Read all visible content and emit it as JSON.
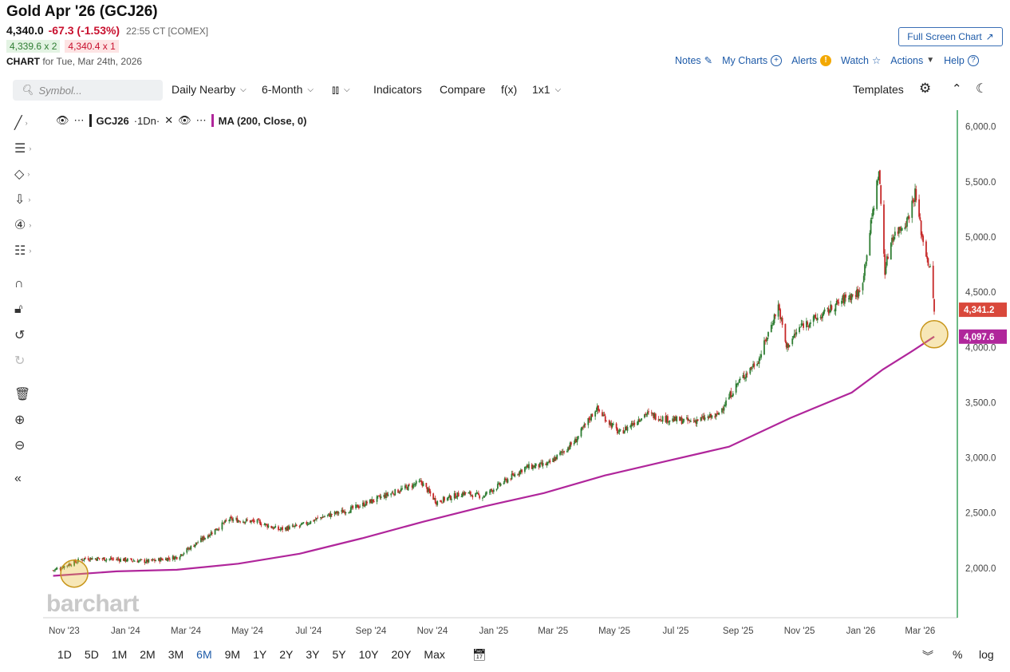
{
  "header": {
    "title": "Gold Apr '26 (GCJ26)",
    "last": "4,340.0",
    "change": "-67.3 (-1.53%)",
    "time": "22:55 CT [COMEX]",
    "bid": "4,339.6 x 2",
    "ask": "4,340.4 x 1",
    "chart_label": "CHART",
    "chart_date": "for Tue, Mar 24th, 2026",
    "fullscreen": "Full Screen Chart"
  },
  "topnav": {
    "notes": "Notes",
    "mycharts": "My Charts",
    "alerts": "Alerts",
    "watch": "Watch",
    "actions": "Actions",
    "help": "Help"
  },
  "toolbar": {
    "search_placeholder": "Symbol...",
    "interval": "Daily Nearby",
    "period": "6-Month",
    "indicators": "Indicators",
    "compare": "Compare",
    "fx": "f(x)",
    "layout": "1x1",
    "templates": "Templates"
  },
  "legend": {
    "symbol": "GCJ26",
    "interval": "·1Dn·",
    "ma": "MA (200, Close, 0)"
  },
  "watermark": "barchart",
  "ranges": [
    "1D",
    "5D",
    "1M",
    "2M",
    "3M",
    "6M",
    "9M",
    "1Y",
    "2Y",
    "3Y",
    "5Y",
    "10Y",
    "20Y",
    "Max"
  ],
  "active_range": "6M",
  "bottom_right": {
    "percent": "%",
    "log": "log"
  },
  "colors": {
    "up": "#2e7d32",
    "down": "#c62828",
    "ma": "#b0269b",
    "last_badge": "#d9483b",
    "axis": "#3aa35b",
    "highlight": "#e8b930"
  },
  "chart_data": {
    "type": "line",
    "x_labels": [
      "Nov '23",
      "Jan '24",
      "Mar '24",
      "May '24",
      "Jul '24",
      "Sep '24",
      "Nov '24",
      "Jan '25",
      "Mar '25",
      "May '25",
      "Jul '25",
      "Sep '25",
      "Nov '25",
      "Jan '26",
      "Mar '26"
    ],
    "y_ticks": [
      "6,000.0",
      "5,500.0",
      "5,000.0",
      "4,500.0",
      "4,000.0",
      "3,500.0",
      "3,000.0",
      "2,500.0",
      "2,000.0"
    ],
    "ylim": [
      1550,
      6150
    ],
    "series": [
      {
        "name": "GCJ26",
        "x": [
          "2023-10-30",
          "2023-12-01",
          "2024-01-02",
          "2024-02-01",
          "2024-03-01",
          "2024-04-01",
          "2024-04-22",
          "2024-05-20",
          "2024-06-10",
          "2024-07-01",
          "2024-07-22",
          "2024-08-20",
          "2024-09-25",
          "2024-10-30",
          "2024-11-14",
          "2024-12-11",
          "2024-12-30",
          "2025-02-10",
          "2025-03-05",
          "2025-04-01",
          "2025-04-22",
          "2025-05-15",
          "2025-06-10",
          "2025-07-01",
          "2025-07-25",
          "2025-08-20",
          "2025-09-10",
          "2025-10-01",
          "2025-10-20",
          "2025-10-28",
          "2025-11-12",
          "2025-12-01",
          "2025-12-26",
          "2026-01-10",
          "2026-01-28",
          "2026-02-03",
          "2026-02-10",
          "2026-02-25",
          "2026-03-05",
          "2026-03-12",
          "2026-03-20",
          "2026-03-24"
        ],
        "y": [
          1980,
          2090,
          2080,
          2060,
          2100,
          2300,
          2440,
          2420,
          2350,
          2380,
          2460,
          2530,
          2660,
          2780,
          2600,
          2680,
          2650,
          2910,
          2940,
          3150,
          3450,
          3220,
          3400,
          3350,
          3330,
          3380,
          3680,
          3900,
          4380,
          4000,
          4200,
          4280,
          4450,
          4500,
          5600,
          4700,
          5000,
          5150,
          5400,
          5000,
          4700,
          4340
        ]
      },
      {
        "name": "MA (200, Close, 0)",
        "x": [
          "2023-10-30",
          "2024-01-01",
          "2024-03-01",
          "2024-05-01",
          "2024-07-01",
          "2024-09-01",
          "2024-11-01",
          "2025-01-01",
          "2025-03-01",
          "2025-05-01",
          "2025-07-01",
          "2025-09-01",
          "2025-11-01",
          "2026-01-01",
          "2026-02-01",
          "2026-03-01",
          "2026-03-24"
        ],
        "y": [
          1930,
          1970,
          1985,
          2040,
          2130,
          2270,
          2420,
          2560,
          2680,
          2840,
          2970,
          3100,
          3360,
          3590,
          3800,
          3960,
          4097.6
        ]
      }
    ],
    "last_price_label": "4,341.2",
    "ma_label": "4,097.6"
  }
}
